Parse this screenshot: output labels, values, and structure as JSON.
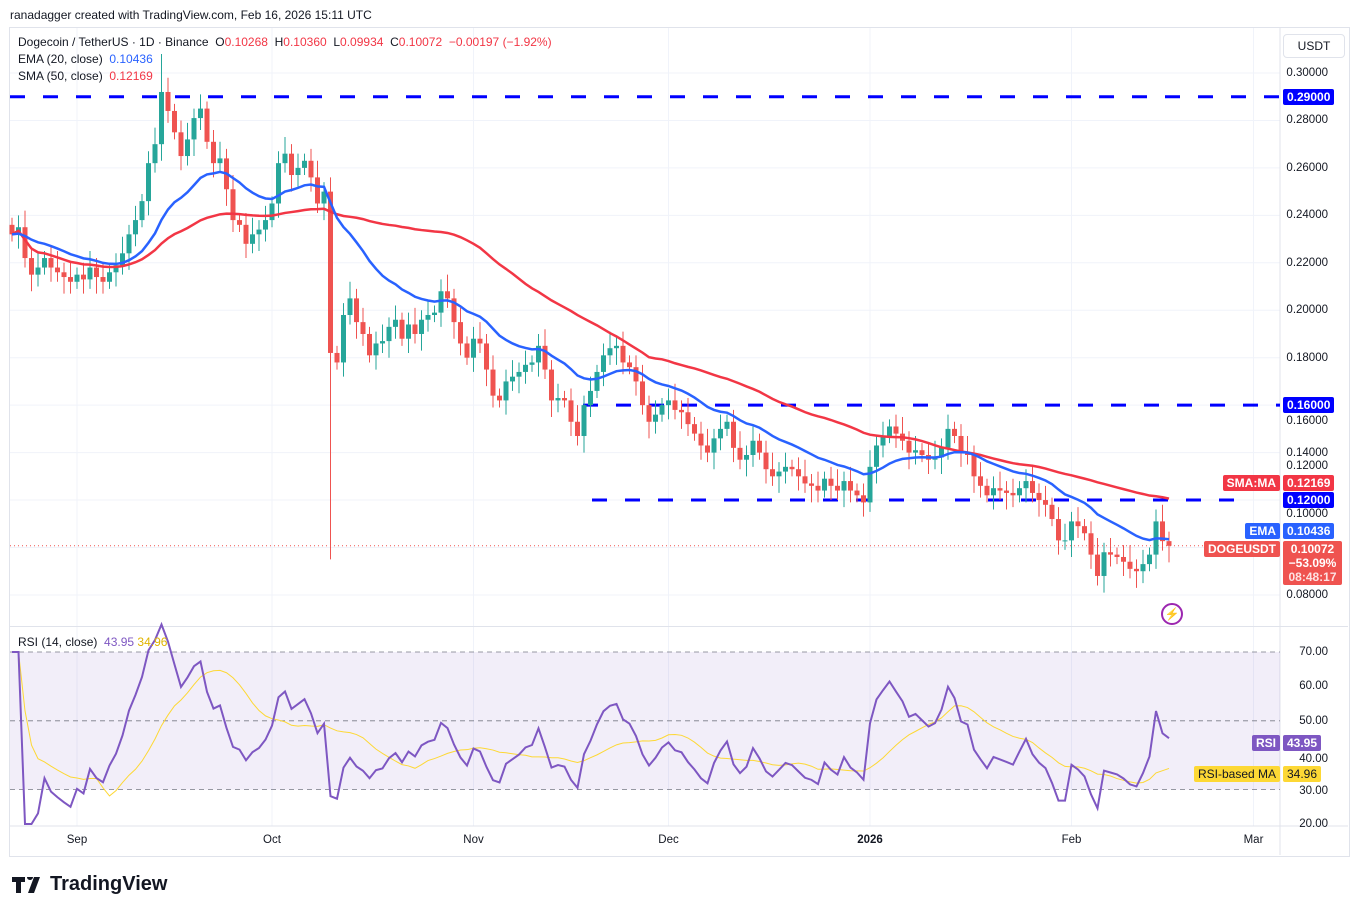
{
  "credit": "ranadagger created with TradingView.com, Feb 16, 2026 15:11 UTC",
  "legend": {
    "symbol": "Dogecoin / TetherUS · 1D · Binance",
    "o_label": "O",
    "o": "0.10268",
    "h_label": "H",
    "h": "0.10360",
    "l_label": "L",
    "l": "0.09934",
    "c_label": "C",
    "c": "0.10072",
    "change": "−0.00197 (−1.92%)",
    "ema_label": "EMA (20, close)",
    "ema_value": "0.10436",
    "sma_label": "SMA (50, close)",
    "sma_value": "0.12169",
    "rsi_label": "RSI (14, close)",
    "rsi_value": "43.95",
    "rsi_ma_value": "34.96"
  },
  "currency": "USDT",
  "price_axis": [
    "0.30000",
    "0.28000",
    "0.26000",
    "0.24000",
    "0.22000",
    "0.20000",
    "0.18000",
    "0.16000",
    "0.14000",
    "0.12000",
    "0.10000",
    "0.08000"
  ],
  "rsi_axis": [
    "70.00",
    "60.00",
    "50.00",
    "40.00",
    "30.00",
    "20.00"
  ],
  "time_axis": [
    {
      "label": "Sep",
      "index": 10
    },
    {
      "label": "Oct",
      "index": 40
    },
    {
      "label": "Nov",
      "index": 71
    },
    {
      "label": "Dec",
      "index": 101
    },
    {
      "label": "2026",
      "index": 132,
      "bold": true
    },
    {
      "label": "Feb",
      "index": 163
    },
    {
      "label": "Mar",
      "index": 191
    }
  ],
  "tags": {
    "resistance_290": "0.29000",
    "resistance_160": "0.16000",
    "support_120": "0.12000",
    "sma_name": "SMA:MA",
    "sma_val": "0.12169",
    "ema_name": "EMA",
    "ema_val": "0.10436",
    "sym_name": "DOGEUSDT",
    "sym_val": "0.10072",
    "sym_pct": "−53.09%",
    "countdown": "08:48:17",
    "rsi_name": "RSI",
    "rsi_val": "43.95",
    "rsima_name": "RSI-based MA",
    "rsima_val": "34.96"
  },
  "colors": {
    "up": "#26a69a",
    "down": "#ef5350",
    "ema": "#2962ff",
    "sma": "#f23645",
    "level": "#0000ff",
    "rsi": "#7e57c2",
    "rsi_ma": "#fdd835"
  },
  "brand": "TradingView",
  "chart_data": {
    "type": "candlestick",
    "start_date": "2025-08-22",
    "end_date": "2026-02-16",
    "ylim": [
      0.07,
      0.31
    ],
    "horizontal_levels": [
      0.29,
      0.16,
      0.12
    ],
    "closes": [
      0.232,
      0.235,
      0.222,
      0.215,
      0.218,
      0.222,
      0.218,
      0.216,
      0.214,
      0.212,
      0.215,
      0.213,
      0.218,
      0.214,
      0.212,
      0.216,
      0.219,
      0.224,
      0.232,
      0.238,
      0.246,
      0.262,
      0.27,
      0.292,
      0.284,
      0.275,
      0.265,
      0.272,
      0.281,
      0.285,
      0.271,
      0.262,
      0.264,
      0.251,
      0.238,
      0.236,
      0.228,
      0.232,
      0.234,
      0.238,
      0.245,
      0.262,
      0.266,
      0.257,
      0.26,
      0.263,
      0.256,
      0.245,
      0.25,
      0.182,
      0.178,
      0.198,
      0.205,
      0.195,
      0.19,
      0.181,
      0.186,
      0.187,
      0.193,
      0.196,
      0.188,
      0.194,
      0.19,
      0.196,
      0.198,
      0.199,
      0.208,
      0.205,
      0.195,
      0.186,
      0.18,
      0.188,
      0.186,
      0.175,
      0.164,
      0.162,
      0.17,
      0.172,
      0.174,
      0.177,
      0.178,
      0.185,
      0.175,
      0.162,
      0.163,
      0.162,
      0.153,
      0.147,
      0.16,
      0.166,
      0.174,
      0.181,
      0.184,
      0.185,
      0.178,
      0.176,
      0.17,
      0.16,
      0.153,
      0.156,
      0.16,
      0.162,
      0.158,
      0.157,
      0.152,
      0.148,
      0.143,
      0.14,
      0.146,
      0.15,
      0.153,
      0.142,
      0.137,
      0.139,
      0.145,
      0.14,
      0.133,
      0.13,
      0.132,
      0.134,
      0.133,
      0.13,
      0.127,
      0.126,
      0.124,
      0.129,
      0.126,
      0.124,
      0.128,
      0.124,
      0.122,
      0.119,
      0.134,
      0.143,
      0.147,
      0.151,
      0.148,
      0.145,
      0.14,
      0.141,
      0.139,
      0.137,
      0.138,
      0.142,
      0.15,
      0.147,
      0.14,
      0.139,
      0.13,
      0.126,
      0.122,
      0.125,
      0.124,
      0.123,
      0.122,
      0.125,
      0.128,
      0.123,
      0.12,
      0.118,
      0.112,
      0.103,
      0.103,
      0.111,
      0.109,
      0.106,
      0.097,
      0.088,
      0.098,
      0.097,
      0.096,
      0.094,
      0.091,
      0.09,
      0.093,
      0.097,
      0.111,
      0.10268,
      0.10072
    ],
    "wick_extremes": [
      {
        "index": 49,
        "low": 0.095
      },
      {
        "index": 23,
        "high": 0.308
      }
    ],
    "indicators": [
      "EMA 20",
      "SMA 50",
      "RSI 14",
      "RSI-based MA 14"
    ]
  }
}
